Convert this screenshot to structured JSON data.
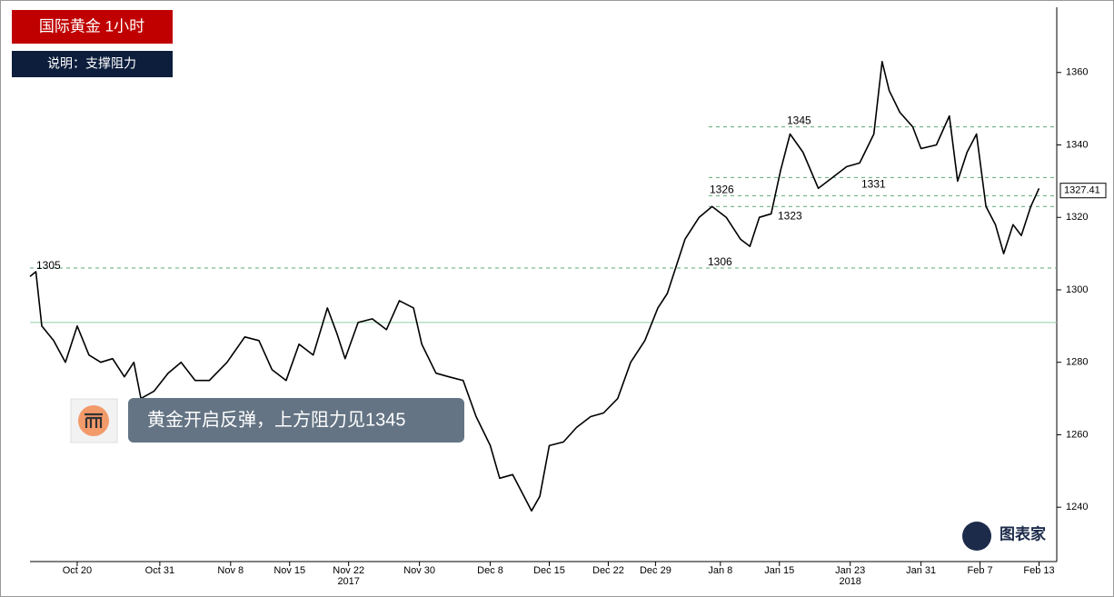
{
  "chart_data": {
    "type": "line",
    "title": "国际黄金  1小时",
    "subtitle": "说明：支撑阻力",
    "caption": "黄金开启反弹，上方阻力见1345",
    "logo": "图表家",
    "xlim": [
      0,
      87
    ],
    "ylim": [
      1225,
      1378
    ],
    "yticks": [
      1240,
      1260,
      1280,
      1300,
      1320,
      1340,
      1360
    ],
    "xticks": [
      {
        "value": 4,
        "label": "Oct 20"
      },
      {
        "value": 11,
        "label": "Oct 31"
      },
      {
        "value": 17,
        "label": "Nov 8"
      },
      {
        "value": 22,
        "label": "Nov 15"
      },
      {
        "value": 27,
        "label": "Nov 22"
      },
      {
        "value": 33,
        "label": "Nov 30"
      },
      {
        "value": 39,
        "label": "Dec 8"
      },
      {
        "value": 44,
        "label": "Dec 15"
      },
      {
        "value": 49,
        "label": "Dec 22"
      },
      {
        "value": 53,
        "label": "Dec 29"
      },
      {
        "value": 58.5,
        "label": "Jan 8"
      },
      {
        "value": 63.5,
        "label": "Jan 15"
      },
      {
        "value": 69.5,
        "label": "Jan 23"
      },
      {
        "value": 75.5,
        "label": "Jan 31"
      },
      {
        "value": 80.5,
        "label": "Feb 7"
      },
      {
        "value": 85.5,
        "label": "Feb 13"
      }
    ],
    "year_labels": [
      {
        "value": 27,
        "label": "2017"
      },
      {
        "value": 69.5,
        "label": "2018"
      }
    ],
    "levels": [
      1345,
      1331,
      1326,
      1323,
      1306
    ],
    "support_line": 1291,
    "level_labels": [
      1305,
      1345,
      1326,
      1323,
      1306,
      1331
    ],
    "last_price": {
      "value": 1327.41,
      "label": "1327.41"
    },
    "series": [
      {
        "color": "#000000",
        "x": [
          0,
          0.5,
          1,
          2,
          3,
          4,
          5,
          6,
          7,
          8,
          8.8,
          9.4,
          10.5,
          11.7,
          12.8,
          14,
          15.2,
          16.7,
          18.2,
          19.4,
          20.5,
          21.7,
          22.8,
          24,
          25.2,
          26,
          26.7,
          27.8,
          29,
          30.2,
          31.3,
          32.5,
          33.2,
          34.4,
          35.5,
          36.7,
          37.8,
          39,
          39.8,
          40.9,
          41.7,
          42.5,
          43.2,
          44,
          45.2,
          46.3,
          47.5,
          48.6,
          49.8,
          50.9,
          52.1,
          53.2,
          54,
          54.8,
          55.5,
          56.7,
          57.8,
          59,
          60.2,
          61,
          61.8,
          62.8,
          63.6,
          64.4,
          65.5,
          66.8,
          68,
          69.2,
          70.3,
          71.5,
          72.2,
          72.8,
          73.7,
          74.8,
          75.5,
          76.8,
          77.9,
          78.6,
          79.4,
          80.2,
          81,
          81.8,
          82.5,
          83.3,
          84,
          84.8,
          85.5
        ],
        "values": [
          1303.7,
          1305,
          1290,
          1286,
          1280,
          1290,
          1282,
          1280,
          1281,
          1276,
          1280,
          1270,
          1272,
          1277,
          1280,
          1275,
          1275,
          1280,
          1287,
          1286,
          1278,
          1275,
          1285,
          1282,
          1295,
          1288,
          1281,
          1291,
          1292,
          1289,
          1297,
          1295,
          1285,
          1277,
          1276,
          1275,
          1265,
          1257,
          1248,
          1249,
          1244,
          1239,
          1243,
          1257,
          1258,
          1262,
          1265,
          1266,
          1270,
          1280,
          1286,
          1295,
          1299,
          1307,
          1314,
          1320,
          1323,
          1320,
          1314,
          1312,
          1320,
          1321,
          1333,
          1343,
          1338,
          1328,
          1331,
          1334,
          1335,
          1343,
          1363,
          1355,
          1349,
          1345,
          1339,
          1340,
          1348,
          1330,
          1338,
          1343,
          1323,
          1318,
          1310,
          1318,
          1315,
          1323,
          1328
        ]
      }
    ]
  }
}
